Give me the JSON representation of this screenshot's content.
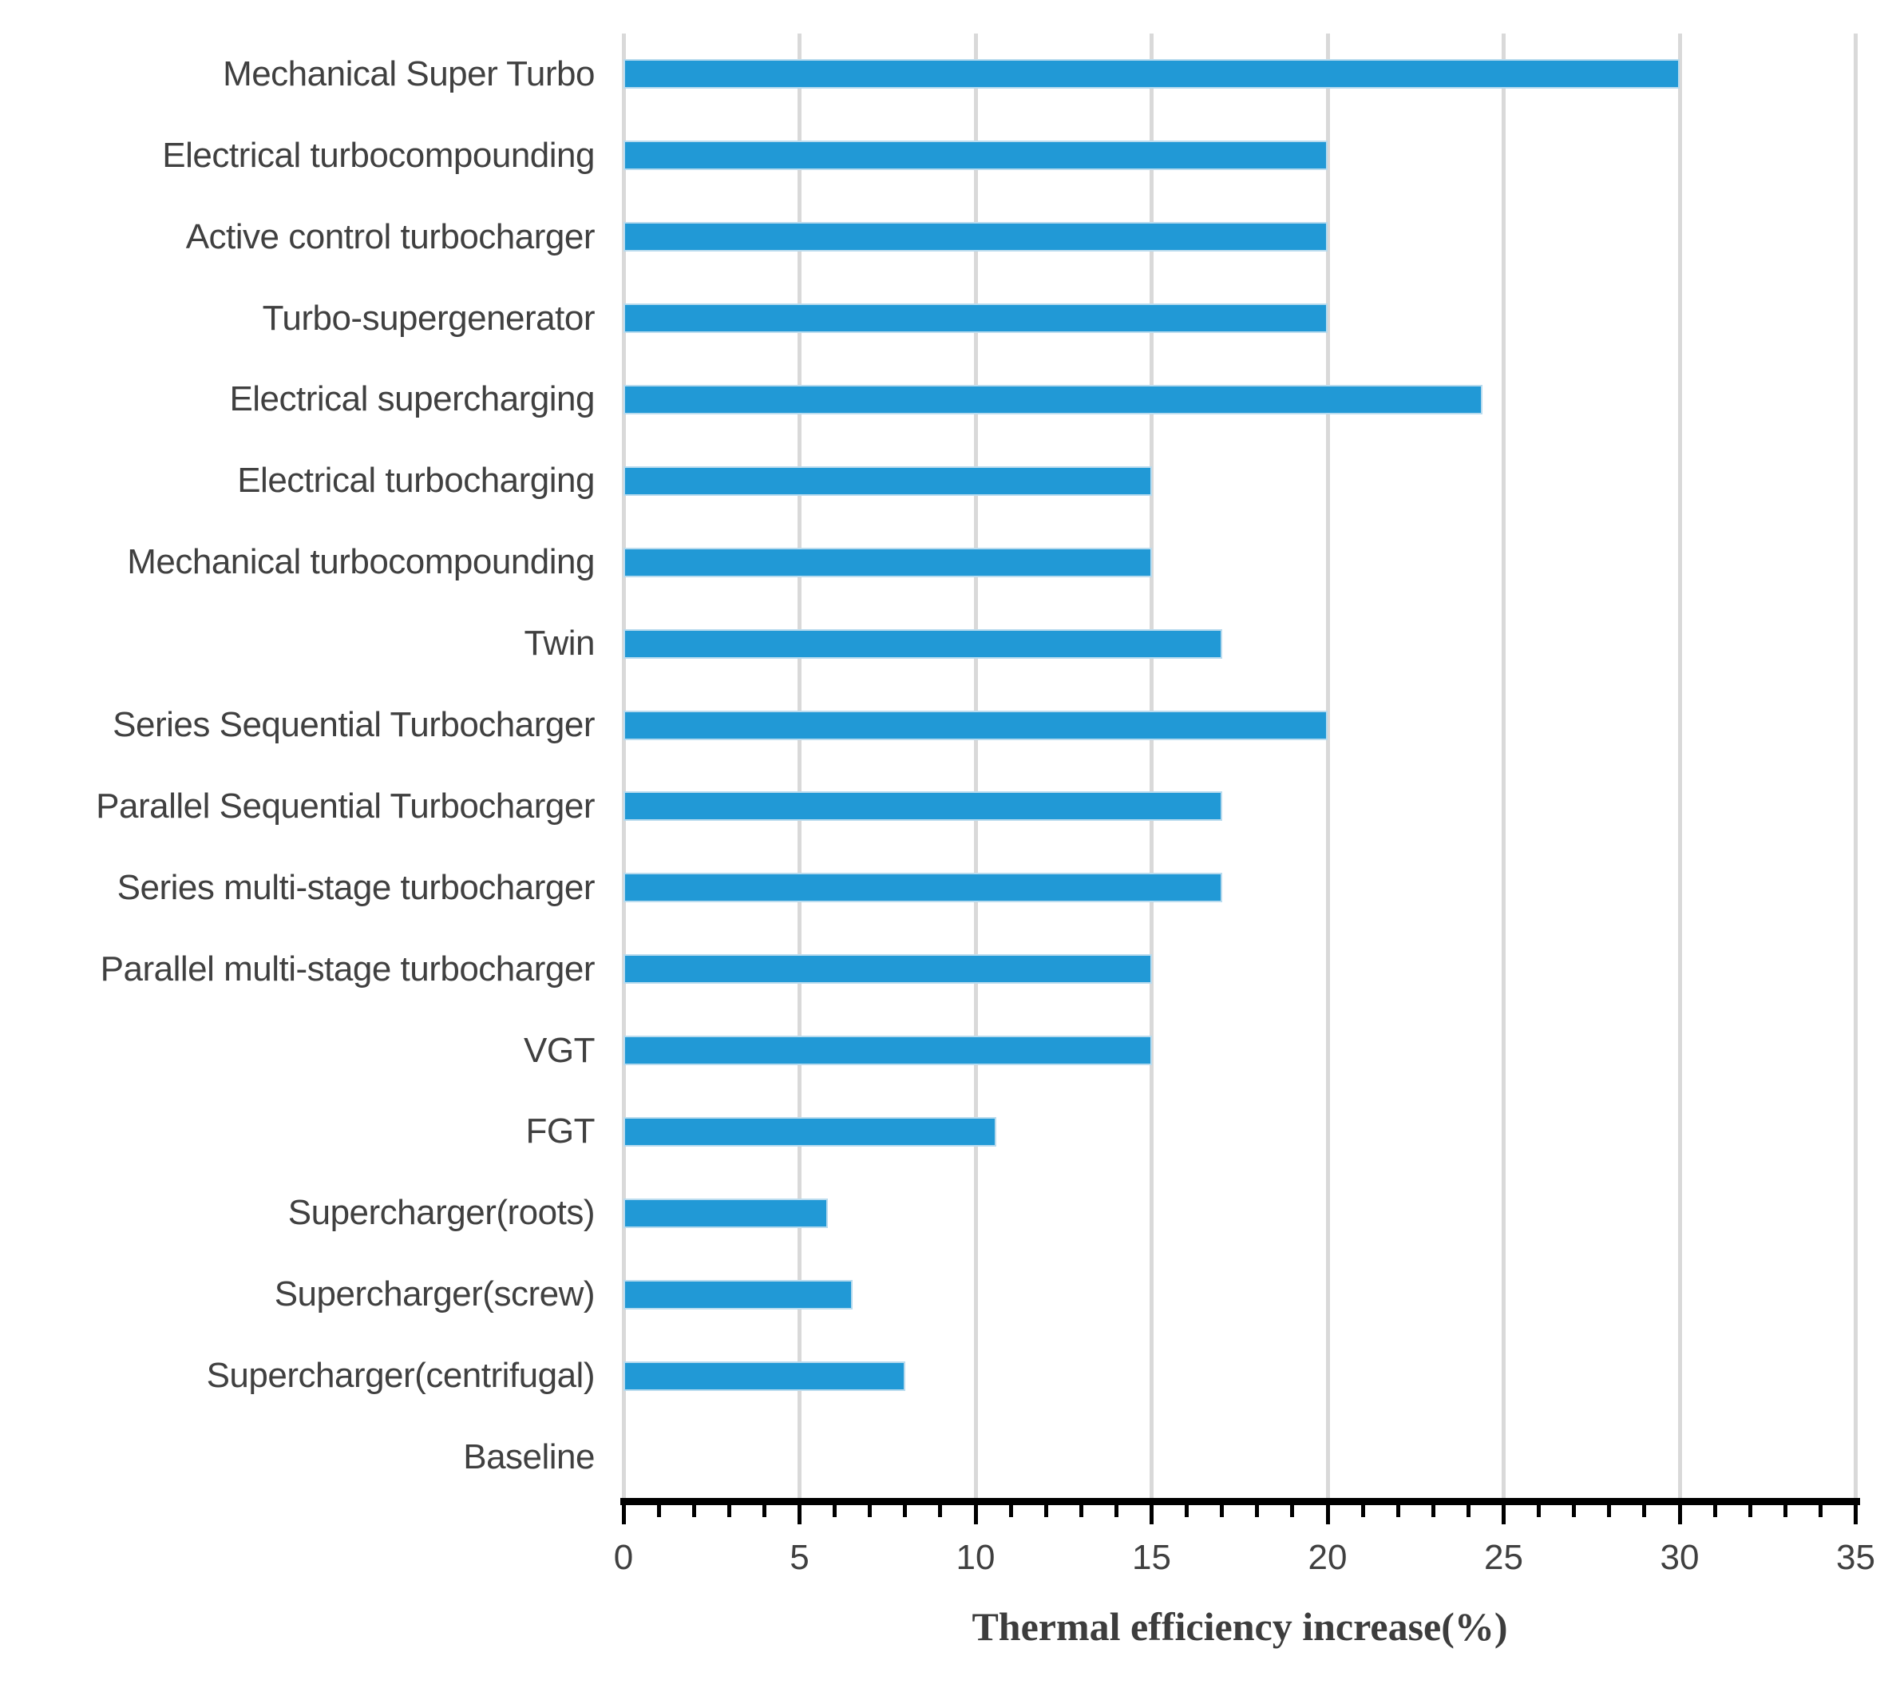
{
  "chart_data": {
    "type": "bar",
    "orientation": "horizontal",
    "title": "",
    "xlabel": "Thermal efficiency increase(%)",
    "ylabel": "",
    "categories": [
      "Mechanical Super Turbo",
      "Electrical turbocompounding",
      "Active control turbocharger",
      "Turbo-supergenerator",
      "Electrical supercharging",
      "Electrical turbocharging",
      "Mechanical turbocompounding",
      "Twin",
      "Series Sequential Turbocharger",
      "Parallel Sequential Turbocharger",
      "Series multi-stage turbocharger",
      "Parallel multi-stage turbocharger",
      "VGT",
      "FGT",
      "Supercharger(roots)",
      "Supercharger(screw)",
      "Supercharger(centrifugal)",
      "Baseline"
    ],
    "values": [
      30,
      20,
      20,
      20,
      24.4,
      15,
      15,
      17,
      20,
      17,
      17,
      15,
      15,
      10.6,
      5.8,
      6.5,
      8,
      0
    ],
    "xlim": [
      0,
      35
    ],
    "x_major_ticks": [
      0,
      5,
      10,
      15,
      20,
      25,
      30,
      35
    ],
    "x_minor_tick_step": 1,
    "grid": true,
    "legend": "none",
    "colors": {
      "bar_fill": "#2199d6",
      "bar_border": "#b9dbee",
      "gridline": "#d9d9d9",
      "axis": "#000000",
      "tick": "#000000",
      "label_text": "#404040",
      "title_text": "#3d3d3d"
    }
  }
}
